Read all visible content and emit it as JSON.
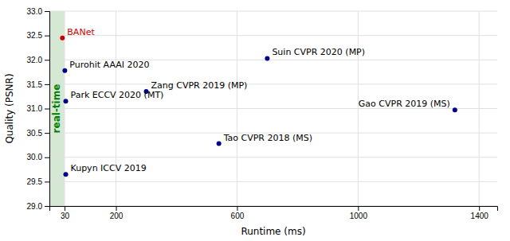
{
  "chart_data": {
    "type": "scatter",
    "xlabel": "Runtime (ms)",
    "ylabel": "Quality (PSNR)",
    "labels": [
      "BANet",
      "Purohit AAAI 2020",
      "Park ECCV 2020 (MT)",
      "Kupyn ICCV 2019",
      "Zang CVPR 2019 (MP)",
      "Tao CVPR 2018 (MS)",
      "Suin CVPR 2020 (MP)",
      "Gao CVPR 2019 (MS)"
    ],
    "x": [
      23,
      31,
      34,
      34,
      300,
      540,
      700,
      1320
    ],
    "values": [
      32.45,
      31.78,
      31.15,
      29.65,
      31.35,
      30.28,
      32.03,
      30.97
    ],
    "colors": [
      "#cc0000",
      "#00008b",
      "#00008b",
      "#00008b",
      "#00008b",
      "#00008b",
      "#00008b",
      "#00008b"
    ],
    "label_colors": [
      "#cc0000",
      "black",
      "black",
      "black",
      "black",
      "black",
      "black",
      "black"
    ],
    "xlim": [
      -20,
      1460
    ],
    "ylim": [
      29.0,
      33.0
    ],
    "xticks": [
      30,
      200,
      600,
      1000,
      1400
    ],
    "yticks": [
      {
        "value": 29.0,
        "label": "29.0"
      },
      29.5,
      {
        "value": 30.0,
        "label": "30.0"
      },
      30.5,
      {
        "value": 31.0,
        "label": "31.0"
      },
      31.5,
      {
        "value": 32.0,
        "label": "32.0"
      },
      32.5,
      {
        "value": 33.0,
        "label": "33.0"
      }
    ],
    "grid": true,
    "annotations": [
      {
        "text": "real-time",
        "x_start": -20,
        "x_end": 30,
        "color": "#d5e8d4",
        "text_color": "green"
      }
    ]
  }
}
